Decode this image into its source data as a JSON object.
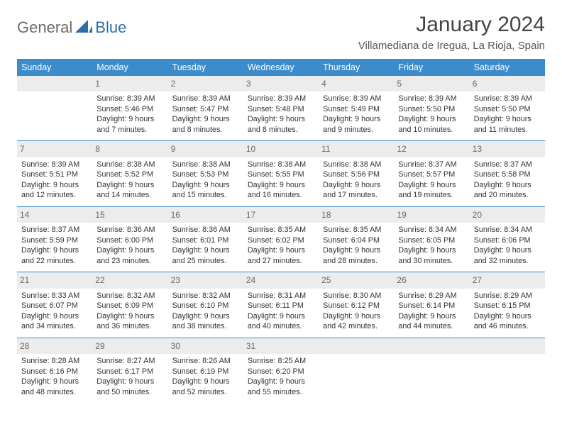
{
  "brand": {
    "part1": "General",
    "part2": "Blue"
  },
  "title": "January 2024",
  "location": "Villamediana de Iregua, La Rioja, Spain",
  "colors": {
    "header_bg": "#3c8ccc",
    "header_text": "#ffffff",
    "daynum_bg": "#ececec",
    "daynum_text": "#6a6a6a",
    "rule": "#3c8ccc",
    "body_text": "#333333",
    "title_text": "#444444"
  },
  "dow": [
    "Sunday",
    "Monday",
    "Tuesday",
    "Wednesday",
    "Thursday",
    "Friday",
    "Saturday"
  ],
  "weeks": [
    [
      {
        "day": "",
        "sunrise": "",
        "sunset": "",
        "daylight": ""
      },
      {
        "day": "1",
        "sunrise": "Sunrise: 8:39 AM",
        "sunset": "Sunset: 5:46 PM",
        "daylight": "Daylight: 9 hours and 7 minutes."
      },
      {
        "day": "2",
        "sunrise": "Sunrise: 8:39 AM",
        "sunset": "Sunset: 5:47 PM",
        "daylight": "Daylight: 9 hours and 8 minutes."
      },
      {
        "day": "3",
        "sunrise": "Sunrise: 8:39 AM",
        "sunset": "Sunset: 5:48 PM",
        "daylight": "Daylight: 9 hours and 8 minutes."
      },
      {
        "day": "4",
        "sunrise": "Sunrise: 8:39 AM",
        "sunset": "Sunset: 5:49 PM",
        "daylight": "Daylight: 9 hours and 9 minutes."
      },
      {
        "day": "5",
        "sunrise": "Sunrise: 8:39 AM",
        "sunset": "Sunset: 5:50 PM",
        "daylight": "Daylight: 9 hours and 10 minutes."
      },
      {
        "day": "6",
        "sunrise": "Sunrise: 8:39 AM",
        "sunset": "Sunset: 5:50 PM",
        "daylight": "Daylight: 9 hours and 11 minutes."
      }
    ],
    [
      {
        "day": "7",
        "sunrise": "Sunrise: 8:39 AM",
        "sunset": "Sunset: 5:51 PM",
        "daylight": "Daylight: 9 hours and 12 minutes."
      },
      {
        "day": "8",
        "sunrise": "Sunrise: 8:38 AM",
        "sunset": "Sunset: 5:52 PM",
        "daylight": "Daylight: 9 hours and 14 minutes."
      },
      {
        "day": "9",
        "sunrise": "Sunrise: 8:38 AM",
        "sunset": "Sunset: 5:53 PM",
        "daylight": "Daylight: 9 hours and 15 minutes."
      },
      {
        "day": "10",
        "sunrise": "Sunrise: 8:38 AM",
        "sunset": "Sunset: 5:55 PM",
        "daylight": "Daylight: 9 hours and 16 minutes."
      },
      {
        "day": "11",
        "sunrise": "Sunrise: 8:38 AM",
        "sunset": "Sunset: 5:56 PM",
        "daylight": "Daylight: 9 hours and 17 minutes."
      },
      {
        "day": "12",
        "sunrise": "Sunrise: 8:37 AM",
        "sunset": "Sunset: 5:57 PM",
        "daylight": "Daylight: 9 hours and 19 minutes."
      },
      {
        "day": "13",
        "sunrise": "Sunrise: 8:37 AM",
        "sunset": "Sunset: 5:58 PM",
        "daylight": "Daylight: 9 hours and 20 minutes."
      }
    ],
    [
      {
        "day": "14",
        "sunrise": "Sunrise: 8:37 AM",
        "sunset": "Sunset: 5:59 PM",
        "daylight": "Daylight: 9 hours and 22 minutes."
      },
      {
        "day": "15",
        "sunrise": "Sunrise: 8:36 AM",
        "sunset": "Sunset: 6:00 PM",
        "daylight": "Daylight: 9 hours and 23 minutes."
      },
      {
        "day": "16",
        "sunrise": "Sunrise: 8:36 AM",
        "sunset": "Sunset: 6:01 PM",
        "daylight": "Daylight: 9 hours and 25 minutes."
      },
      {
        "day": "17",
        "sunrise": "Sunrise: 8:35 AM",
        "sunset": "Sunset: 6:02 PM",
        "daylight": "Daylight: 9 hours and 27 minutes."
      },
      {
        "day": "18",
        "sunrise": "Sunrise: 8:35 AM",
        "sunset": "Sunset: 6:04 PM",
        "daylight": "Daylight: 9 hours and 28 minutes."
      },
      {
        "day": "19",
        "sunrise": "Sunrise: 8:34 AM",
        "sunset": "Sunset: 6:05 PM",
        "daylight": "Daylight: 9 hours and 30 minutes."
      },
      {
        "day": "20",
        "sunrise": "Sunrise: 8:34 AM",
        "sunset": "Sunset: 6:06 PM",
        "daylight": "Daylight: 9 hours and 32 minutes."
      }
    ],
    [
      {
        "day": "21",
        "sunrise": "Sunrise: 8:33 AM",
        "sunset": "Sunset: 6:07 PM",
        "daylight": "Daylight: 9 hours and 34 minutes."
      },
      {
        "day": "22",
        "sunrise": "Sunrise: 8:32 AM",
        "sunset": "Sunset: 6:09 PM",
        "daylight": "Daylight: 9 hours and 36 minutes."
      },
      {
        "day": "23",
        "sunrise": "Sunrise: 8:32 AM",
        "sunset": "Sunset: 6:10 PM",
        "daylight": "Daylight: 9 hours and 38 minutes."
      },
      {
        "day": "24",
        "sunrise": "Sunrise: 8:31 AM",
        "sunset": "Sunset: 6:11 PM",
        "daylight": "Daylight: 9 hours and 40 minutes."
      },
      {
        "day": "25",
        "sunrise": "Sunrise: 8:30 AM",
        "sunset": "Sunset: 6:12 PM",
        "daylight": "Daylight: 9 hours and 42 minutes."
      },
      {
        "day": "26",
        "sunrise": "Sunrise: 8:29 AM",
        "sunset": "Sunset: 6:14 PM",
        "daylight": "Daylight: 9 hours and 44 minutes."
      },
      {
        "day": "27",
        "sunrise": "Sunrise: 8:29 AM",
        "sunset": "Sunset: 6:15 PM",
        "daylight": "Daylight: 9 hours and 46 minutes."
      }
    ],
    [
      {
        "day": "28",
        "sunrise": "Sunrise: 8:28 AM",
        "sunset": "Sunset: 6:16 PM",
        "daylight": "Daylight: 9 hours and 48 minutes."
      },
      {
        "day": "29",
        "sunrise": "Sunrise: 8:27 AM",
        "sunset": "Sunset: 6:17 PM",
        "daylight": "Daylight: 9 hours and 50 minutes."
      },
      {
        "day": "30",
        "sunrise": "Sunrise: 8:26 AM",
        "sunset": "Sunset: 6:19 PM",
        "daylight": "Daylight: 9 hours and 52 minutes."
      },
      {
        "day": "31",
        "sunrise": "Sunrise: 8:25 AM",
        "sunset": "Sunset: 6:20 PM",
        "daylight": "Daylight: 9 hours and 55 minutes."
      },
      {
        "day": "",
        "sunrise": "",
        "sunset": "",
        "daylight": ""
      },
      {
        "day": "",
        "sunrise": "",
        "sunset": "",
        "daylight": ""
      },
      {
        "day": "",
        "sunrise": "",
        "sunset": "",
        "daylight": ""
      }
    ]
  ]
}
